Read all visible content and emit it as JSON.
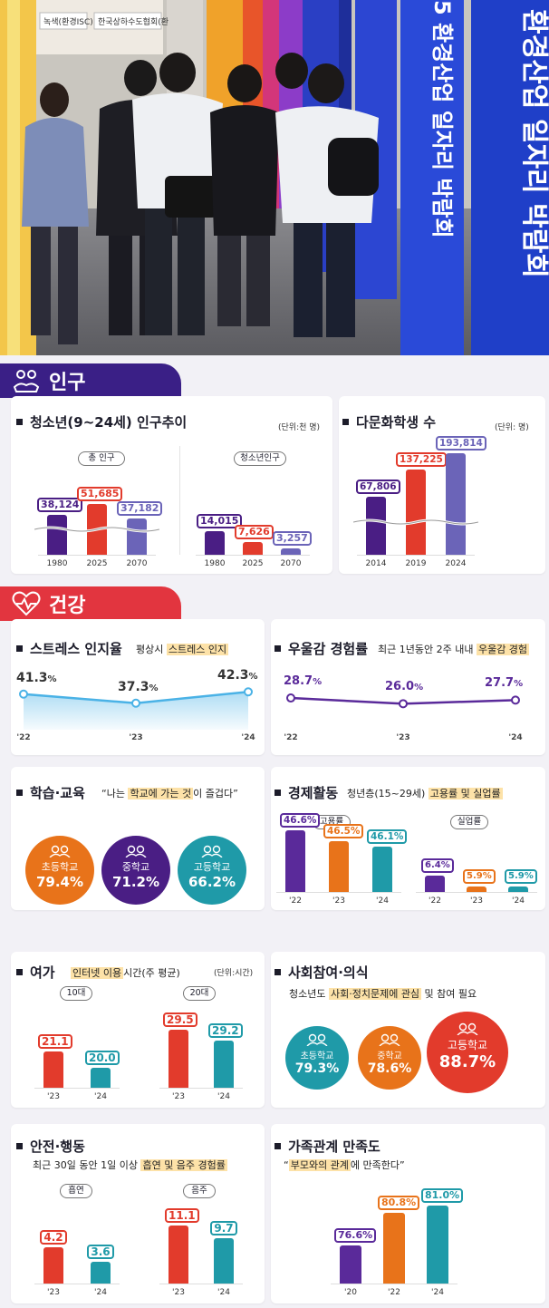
{
  "photo": {
    "banner_text": "환경산업 일자리 박람회",
    "banner_text_left": "5 환경산업 일자리 박람회",
    "booth_sign_1": "녹색(환경ISC)",
    "booth_sign_2": "한국상하수도협회(환"
  },
  "sections": {
    "population": "인구",
    "health": "건강"
  },
  "youth_population": {
    "title": "청소년(9~24세) 인구추이",
    "unit": "(단위:천 명)",
    "total_label": "총 인구",
    "youth_label": "청소년인구",
    "chart_data": [
      {
        "type": "bar",
        "title": "총 인구",
        "categories": [
          "1980",
          "2025",
          "2070"
        ],
        "values": [
          38124,
          51685,
          37182
        ],
        "labels": [
          "38,124",
          "51,685",
          "37,182"
        ],
        "axis_break": true
      },
      {
        "type": "bar",
        "title": "청소년인구",
        "categories": [
          "1980",
          "2025",
          "2070"
        ],
        "values": [
          14015,
          7626,
          3257
        ],
        "labels": [
          "14,015",
          "7,626",
          "3,257"
        ]
      }
    ]
  },
  "multicultural": {
    "title": "다문화학생 수",
    "unit": "(단위: 명)",
    "chart_data": {
      "type": "bar",
      "categories": [
        "2014",
        "2019",
        "2024"
      ],
      "values": [
        67806,
        137225,
        193814
      ],
      "labels": [
        "67,806",
        "137,225",
        "193,814"
      ],
      "axis_break": true
    }
  },
  "stress": {
    "title": "스트레스 인지율",
    "sub_plain": "평상시 ",
    "sub_hl": "스트레스 인지",
    "chart_data": {
      "type": "area",
      "categories": [
        "'22",
        "'23",
        "'24"
      ],
      "values": [
        41.3,
        37.3,
        42.3
      ],
      "labels": [
        "41.3",
        "37.3",
        "42.3"
      ],
      "unit": "%"
    }
  },
  "depression": {
    "title": "우울감 경험률",
    "sub_plain": "최근 1년동안 2주 내내 ",
    "sub_hl": "우울감 경험",
    "chart_data": {
      "type": "line",
      "categories": [
        "'22",
        "'23",
        "'24"
      ],
      "values": [
        28.7,
        26.0,
        27.7
      ],
      "labels": [
        "28.7",
        "26.0",
        "27.7"
      ],
      "unit": "%"
    }
  },
  "learning": {
    "title": "학습·교육",
    "sub_q1": "“나는 ",
    "sub_hl": "학교에 가는 것",
    "sub_q2": "이 즐겁다”",
    "items": [
      {
        "label": "초등학교",
        "value": "79.4%",
        "color": "#e8731a"
      },
      {
        "label": "중학교",
        "value": "71.2%",
        "color": "#4a1e84"
      },
      {
        "label": "고등학교",
        "value": "66.2%",
        "color": "#1f9aa8"
      }
    ]
  },
  "economic": {
    "title": "경제활동",
    "sub_plain": "청년층(15~29세) ",
    "sub_hl": "고용률 및 실업률",
    "employment_label": "고용률",
    "unemployment_label": "실업률",
    "chart_data": [
      {
        "type": "bar",
        "title": "고용률",
        "categories": [
          "'22",
          "'23",
          "'24"
        ],
        "values": [
          46.6,
          46.5,
          46.1
        ],
        "labels": [
          "46.6",
          "46.5",
          "46.1"
        ],
        "unit": "%"
      },
      {
        "type": "bar",
        "title": "실업률",
        "categories": [
          "'22",
          "'23",
          "'24"
        ],
        "values": [
          6.4,
          5.9,
          5.9
        ],
        "labels": [
          "6.4",
          "5.9",
          "5.9"
        ],
        "unit": "%"
      }
    ]
  },
  "leisure": {
    "title": "여가",
    "sub_hl": "인터넷 이용",
    "sub_plain": "시간(주 평균)",
    "unit": "(단위:시간)",
    "teen_label": "10대",
    "twenty_label": "20대",
    "chart_data": [
      {
        "type": "bar",
        "title": "10대",
        "categories": [
          "'23",
          "'24"
        ],
        "values": [
          21.1,
          20.0
        ],
        "labels": [
          "21.1",
          "20.0"
        ]
      },
      {
        "type": "bar",
        "title": "20대",
        "categories": [
          "'23",
          "'24"
        ],
        "values": [
          29.5,
          29.2
        ],
        "labels": [
          "29.5",
          "29.2"
        ]
      }
    ]
  },
  "social": {
    "title": "사회참여·의식",
    "sub_plain1": "청소년도 ",
    "sub_hl": "사회·정치문제에 관심",
    "sub_plain2": " 및 참여 필요",
    "items": [
      {
        "label": "초등학교",
        "value": "79.3%",
        "color": "#1f9aa8"
      },
      {
        "label": "중학교",
        "value": "78.6%",
        "color": "#e8731a"
      },
      {
        "label": "고등학교",
        "value": "88.7%",
        "color": "#e23b2c"
      }
    ]
  },
  "safety": {
    "title": "안전·행동",
    "sub_plain": "최근 30일 동안 1일 이상 ",
    "sub_hl": "흡연 및 음주 경험률",
    "smoking_label": "흡연",
    "drinking_label": "음주",
    "chart_data": [
      {
        "type": "bar",
        "title": "흡연",
        "categories": [
          "'23",
          "'24"
        ],
        "values": [
          4.2,
          3.6
        ],
        "labels": [
          "4.2",
          "3.6"
        ]
      },
      {
        "type": "bar",
        "title": "음주",
        "categories": [
          "'23",
          "'24"
        ],
        "values": [
          11.1,
          9.7
        ],
        "labels": [
          "11.1",
          "9.7"
        ]
      }
    ]
  },
  "family": {
    "title": "가족관계 만족도",
    "sub_q1": "“",
    "sub_hl": "부모와의 관계",
    "sub_q2": "에 만족한다”",
    "chart_data": {
      "type": "bar",
      "categories": [
        "'20",
        "'22",
        "'24"
      ],
      "values": [
        76.6,
        80.8,
        81.0
      ],
      "labels": [
        "76.6",
        "80.8",
        "81.0"
      ],
      "unit": "%"
    }
  },
  "colors": {
    "purple": "#4a1e84",
    "red": "#e23b2c",
    "indigo": "#6b64b8",
    "orange": "#e8731a",
    "teal": "#1f9aa8",
    "sky": "#4ab2e6",
    "violet": "#5a2a9a",
    "section_pop": "#3a1f86",
    "section_health": "#e2353f"
  }
}
